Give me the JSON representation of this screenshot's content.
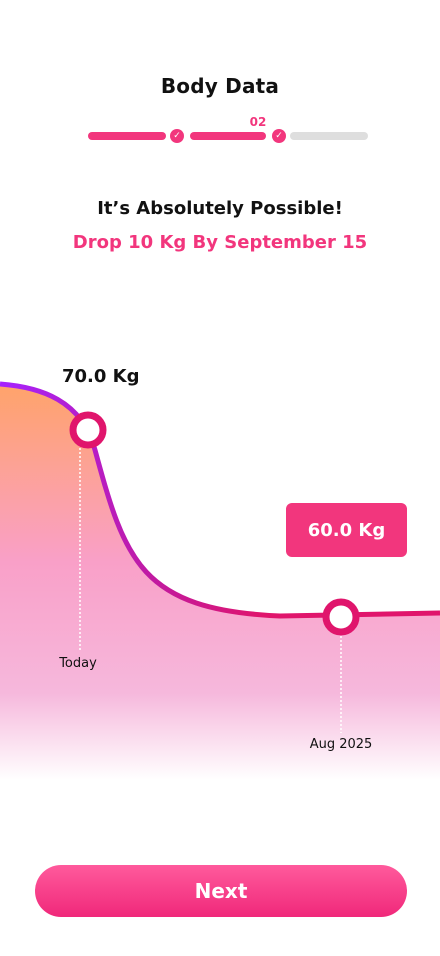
{
  "header": {
    "title": "Body Data",
    "step": "02",
    "progress": {
      "total_steps": 3,
      "completed": 2
    }
  },
  "message": {
    "headline": "It’s Absolutely Possible!",
    "subhead": "Drop 10 Kg By September 15"
  },
  "chart_data": {
    "type": "line",
    "x": [
      "Today",
      "Aug 2025"
    ],
    "values": [
      70.0,
      60.0
    ],
    "point_labels": [
      "70.0 Kg",
      "60.0 Kg"
    ],
    "title": "",
    "xlabel": "",
    "ylabel": ""
  },
  "actions": {
    "next_label": "Next"
  },
  "colors": {
    "accent": "#f2367d",
    "curve_start": "#a622ff",
    "curve_end": "#e0156c",
    "fill_top": "#ffa36a",
    "fill_bottom": "#f9a8d4"
  }
}
